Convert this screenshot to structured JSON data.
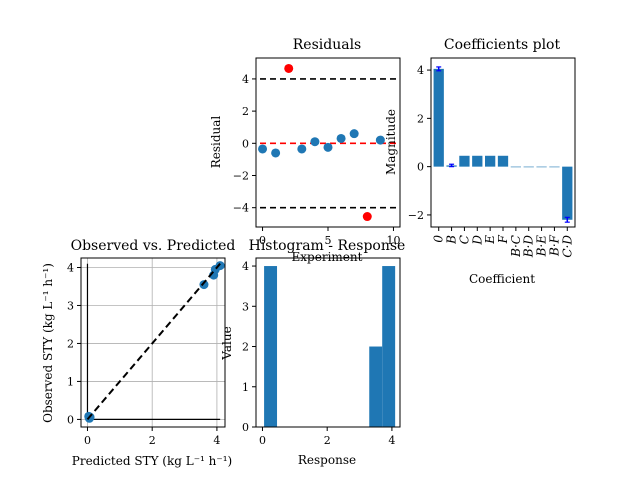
{
  "chart_data": [
    {
      "id": "residuals",
      "type": "scatter",
      "title": "Residuals",
      "xlabel": "Experiment",
      "ylabel": "Residual",
      "xlim": [
        -0.5,
        10.5
      ],
      "ylim": [
        -5.2,
        5.3
      ],
      "xticks": [
        0,
        5,
        10
      ],
      "yticks": [
        -4,
        -2,
        0,
        2,
        4
      ],
      "grid": false,
      "colors": {
        "points": "#1f77b4",
        "outliers": "#ff0000",
        "zero_line": "#ff0000",
        "limit_lines": "#000000"
      },
      "points": [
        {
          "x": 0,
          "y": -0.35
        },
        {
          "x": 1,
          "y": -0.6
        },
        {
          "x": 3,
          "y": -0.35
        },
        {
          "x": 4,
          "y": 0.1
        },
        {
          "x": 5,
          "y": -0.25
        },
        {
          "x": 6,
          "y": 0.3
        },
        {
          "x": 7,
          "y": 0.6
        },
        {
          "x": 9,
          "y": 0.2
        }
      ],
      "outliers": [
        {
          "x": 2,
          "y": 4.65
        },
        {
          "x": 8,
          "y": -4.55
        }
      ],
      "hlines": [
        {
          "y": 4,
          "style": "dashed",
          "color": "#000000"
        },
        {
          "y": 0,
          "style": "dashed",
          "color": "#ff0000"
        },
        {
          "y": -4,
          "style": "dashed",
          "color": "#000000"
        }
      ]
    },
    {
      "id": "coefficients",
      "type": "bar",
      "title": "Coefficients plot",
      "xlabel": "Coefficient",
      "ylabel": "Magnitude",
      "ylim": [
        -2.5,
        4.5
      ],
      "yticks": [
        -2,
        0,
        2,
        4
      ],
      "grid": false,
      "colors": {
        "bars": "#1f77b4",
        "errorbars": "#0000ff"
      },
      "categories": [
        "0",
        "B",
        "C",
        "D",
        "E",
        "F",
        "B·C",
        "B·D",
        "B·E",
        "B·F",
        "C·D"
      ],
      "values": [
        4.05,
        0.05,
        0.45,
        0.45,
        0.45,
        0.45,
        0.0,
        0.0,
        0.0,
        0.0,
        -2.2
      ],
      "errors": [
        0.08,
        0.05,
        0.0,
        0.0,
        0.0,
        0.0,
        0.0,
        0.0,
        0.0,
        0.0,
        0.1
      ]
    },
    {
      "id": "observed_vs_predicted",
      "type": "scatter",
      "title": "Observed vs.  Predicted",
      "xlabel": "Predicted STY (kg L⁻¹ h⁻¹)",
      "ylabel": "Observed STY (kg L⁻¹ h⁻¹)",
      "xlim": [
        -0.2,
        4.25
      ],
      "ylim": [
        -0.2,
        4.25
      ],
      "xticks": [
        0,
        2,
        4
      ],
      "yticks": [
        0,
        1,
        2,
        3,
        4
      ],
      "grid": true,
      "colors": {
        "points": "#1f77b4",
        "diagonal": "#000000",
        "axes_lines": "#000000"
      },
      "points": [
        {
          "x": 0.05,
          "y": 0.05
        },
        {
          "x": 0.08,
          "y": 0.06
        },
        {
          "x": 0.04,
          "y": 0.08
        },
        {
          "x": 0.06,
          "y": 0.03
        },
        {
          "x": 3.6,
          "y": 3.55
        },
        {
          "x": 3.9,
          "y": 3.8
        },
        {
          "x": 3.95,
          "y": 3.95
        },
        {
          "x": 4.1,
          "y": 4.05
        }
      ],
      "diagonal": [
        [
          0,
          0
        ],
        [
          4.1,
          4.1
        ]
      ]
    },
    {
      "id": "histogram",
      "type": "bar",
      "title": "Histogram - Response",
      "xlabel": "Response",
      "ylabel": "Value",
      "xlim": [
        -0.2,
        4.25
      ],
      "ylim": [
        0,
        4.2
      ],
      "xticks": [
        0,
        2,
        4
      ],
      "yticks": [
        0,
        1,
        2,
        3,
        4
      ],
      "grid": false,
      "colors": {
        "bars": "#1f77b4"
      },
      "bins": [
        {
          "from": 0.05,
          "to": 0.45,
          "count": 4
        },
        {
          "from": 3.3,
          "to": 3.7,
          "count": 2
        },
        {
          "from": 3.7,
          "to": 4.1,
          "count": 4
        }
      ]
    }
  ]
}
